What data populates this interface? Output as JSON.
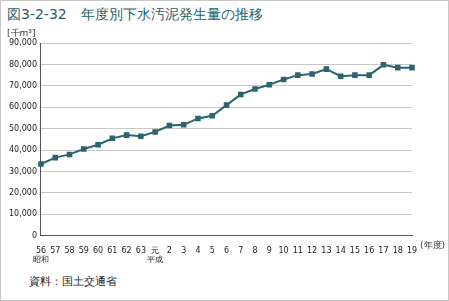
{
  "chart_data": {
    "type": "line",
    "title": "図3-2-32　年度別下水汚泥発生量の推移",
    "y_label": "[千m³]",
    "x_label": "(年度)",
    "source": "資料：国土交通省",
    "annotations": [
      {
        "text": "昭和",
        "category": "56"
      },
      {
        "text": "平成",
        "category": "元"
      }
    ],
    "categories": [
      "56",
      "57",
      "58",
      "59",
      "60",
      "61",
      "62",
      "63",
      "元",
      "2",
      "3",
      "4",
      "5",
      "6",
      "7",
      "8",
      "9",
      "10",
      "11",
      "12",
      "13",
      "14",
      "15",
      "16",
      "17",
      "18",
      "19"
    ],
    "values": [
      33500,
      36500,
      38000,
      40500,
      42500,
      45500,
      47000,
      46500,
      48500,
      51500,
      51800,
      54800,
      56000,
      61000,
      66000,
      68500,
      70500,
      73000,
      75000,
      75500,
      77800,
      74500,
      75000,
      75000,
      79800,
      78500,
      78500
    ],
    "color": "#2b6470",
    "marker": "square",
    "ylim": [
      0,
      90000
    ],
    "yticks": [
      0,
      {
        "value": 10000,
        "label": "10,000"
      },
      {
        "value": 20000,
        "label": "20,000"
      },
      {
        "value": 30000,
        "label": "30,000"
      },
      {
        "value": 40000,
        "label": "40,000"
      },
      {
        "value": 50000,
        "label": "50,000"
      },
      {
        "value": 60000,
        "label": "60,000"
      },
      {
        "value": 70000,
        "label": "70,000"
      },
      {
        "value": 80000,
        "label": "80,000"
      },
      {
        "value": 90000,
        "label": "90,000"
      }
    ],
    "grid": true
  }
}
